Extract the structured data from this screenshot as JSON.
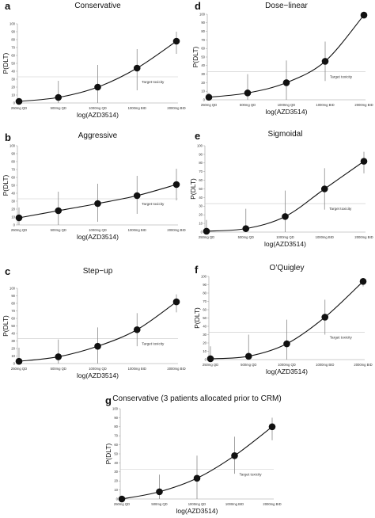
{
  "chart_data": [
    {
      "letter": "a",
      "title": "Conservative",
      "type": "line",
      "categories": [
        "250mg QD",
        "500mg QD",
        "1000mg QD",
        "1000mg BID",
        "2000mg BID"
      ],
      "values": [
        2,
        7,
        20,
        44,
        78
      ],
      "ci_low": [
        0,
        0,
        0,
        16,
        62
      ],
      "ci_high": [
        6,
        28,
        48,
        68,
        90
      ],
      "target_label": "Target toxicity",
      "target": 33,
      "xlabel": "log(AZD3514)",
      "ylabel": "P(DLT)",
      "y_ticks": [
        0,
        10,
        20,
        30,
        40,
        50,
        60,
        70,
        80,
        90,
        100
      ],
      "ylim": [
        0,
        100
      ]
    },
    {
      "letter": "d",
      "title": "Dose−linear",
      "type": "line",
      "categories": [
        "250mg QD",
        "500mg QD",
        "1000mg QD",
        "1000mg BID",
        "2000mg BID"
      ],
      "values": [
        3,
        8,
        20,
        45,
        99
      ],
      "ci_low": [
        0,
        0,
        0,
        22,
        96
      ],
      "ci_high": [
        8,
        30,
        46,
        68,
        100
      ],
      "target_label": "Target toxicity",
      "target": 33,
      "xlabel": "log(AZD3514)",
      "ylabel": "P(DLT)",
      "y_ticks": [
        0,
        10,
        20,
        30,
        40,
        50,
        60,
        70,
        80,
        90,
        100
      ],
      "ylim": [
        0,
        100
      ]
    },
    {
      "letter": "b",
      "title": "Aggressive",
      "type": "line",
      "categories": [
        "250mg QD",
        "500mg QD",
        "1000mg QD",
        "1000mg BID",
        "2000mg BID"
      ],
      "values": [
        9,
        18,
        27,
        37,
        51
      ],
      "ci_low": [
        0,
        0,
        4,
        14,
        31
      ],
      "ci_high": [
        22,
        42,
        52,
        62,
        71
      ],
      "target_label": "Target toxicity",
      "target": 33,
      "xlabel": "log(AZD3514)",
      "ylabel": "P(DLT)",
      "y_ticks": [
        0,
        10,
        20,
        30,
        40,
        50,
        60,
        70,
        80,
        90,
        100
      ],
      "ylim": [
        0,
        100
      ]
    },
    {
      "letter": "e",
      "title": "Sigmoidal",
      "type": "line",
      "categories": [
        "250mg QD",
        "500mg QD",
        "1000mg QD",
        "1000mg BID",
        "2000mg BID"
      ],
      "values": [
        1,
        4,
        18,
        50,
        82
      ],
      "ci_low": [
        0,
        0,
        0,
        26,
        68
      ],
      "ci_high": [
        14,
        27,
        48,
        74,
        93
      ],
      "target_label": "Target toxicity",
      "target": 33,
      "xlabel": "log(AZD3514)",
      "ylabel": "P(DLT)",
      "y_ticks": [
        0,
        10,
        20,
        30,
        40,
        50,
        60,
        70,
        80,
        90,
        100
      ],
      "ylim": [
        0,
        100
      ]
    },
    {
      "letter": "c",
      "title": "Step−up",
      "type": "line",
      "categories": [
        "250mg QD",
        "500mg QD",
        "1000mg QD",
        "1000mg BID",
        "2000mg BID"
      ],
      "values": [
        3,
        9,
        23,
        45,
        82
      ],
      "ci_low": [
        0,
        0,
        0,
        23,
        68
      ],
      "ci_high": [
        21,
        32,
        48,
        67,
        92
      ],
      "target_label": "Target toxicity",
      "target": 33,
      "xlabel": "log(AZD3514)",
      "ylabel": "P(DLT)",
      "y_ticks": [
        0,
        10,
        20,
        30,
        40,
        50,
        60,
        70,
        80,
        90,
        100
      ],
      "ylim": [
        0,
        100
      ]
    },
    {
      "letter": "f",
      "title": "O’Quigley",
      "type": "line",
      "categories": [
        "250mg QD",
        "500mg QD",
        "1000mg QD",
        "1000mg BID",
        "2000mg BID"
      ],
      "values": [
        1,
        4,
        19,
        51,
        94
      ],
      "ci_low": [
        0,
        0,
        0,
        30,
        88
      ],
      "ci_high": [
        16,
        30,
        48,
        72,
        98
      ],
      "target_label": "Target toxicity",
      "target": 33,
      "xlabel": "log(AZD3514)",
      "ylabel": "P(DLT)",
      "y_ticks": [
        0,
        10,
        20,
        30,
        40,
        50,
        60,
        70,
        80,
        90,
        100
      ],
      "ylim": [
        0,
        100
      ]
    },
    {
      "letter": "g",
      "title": "Conservative (3 patients allocated prior to CRM)",
      "type": "line",
      "categories": [
        "250mg QD",
        "500mg QD",
        "1000mg QD",
        "1000mg BID",
        "2000mg BID"
      ],
      "values": [
        0,
        8,
        23,
        48,
        80
      ],
      "ci_low": [
        0,
        0,
        0,
        28,
        65
      ],
      "ci_high": [
        2,
        27,
        48,
        69,
        90
      ],
      "target_label": "Target toxicity",
      "target": 33,
      "xlabel": "log(AZD3514)",
      "ylabel": "P(DLT)",
      "y_ticks": [
        0,
        10,
        20,
        30,
        40,
        50,
        60,
        70,
        80,
        90,
        100
      ],
      "ylim": [
        0,
        100
      ]
    }
  ]
}
